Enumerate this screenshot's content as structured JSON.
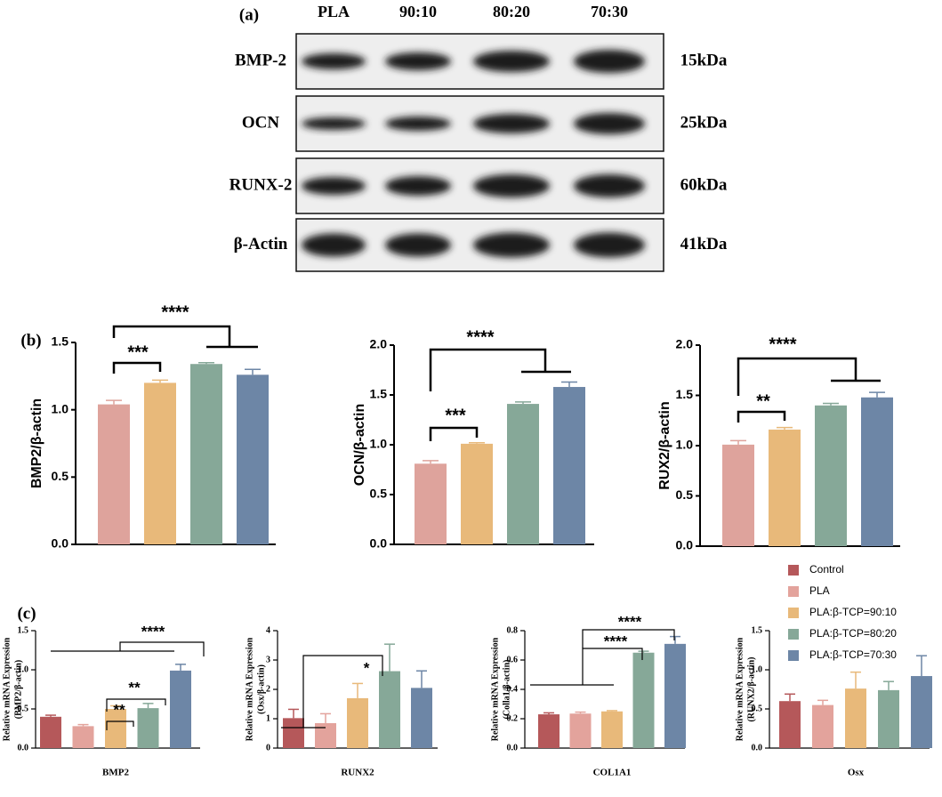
{
  "blot": {
    "panel_label": "(a)",
    "lanes": [
      "PLA",
      "90:10",
      "80:20",
      "70:30"
    ],
    "proteins": [
      "BMP-2",
      "OCN",
      "RUNX-2",
      "β-Actin"
    ],
    "sizes": [
      "15kDa",
      "25kDa",
      "60kDa",
      "41kDa"
    ]
  },
  "panel_labels": [
    "(b)",
    "(c)"
  ],
  "legend": {
    "position": "right",
    "entries": [
      {
        "name": "Control",
        "color": "#b5585a"
      },
      {
        "name": "PLA",
        "color": "#e3a39c"
      },
      {
        "name": "PLA:β-TCP=90:10",
        "color": "#e8b97a"
      },
      {
        "name": "PLA:β-TCP=80:20",
        "color": "#86a898"
      },
      {
        "name": "PLA:β-TCP=70:30",
        "color": "#6d86a6"
      }
    ]
  },
  "chart_data": [
    {
      "type": "bar",
      "ylabel": "BMP2/β-actin",
      "ylim": [
        0,
        1.5
      ],
      "yticks": [
        {
          "value": 0,
          "label": "0.0"
        },
        0.5,
        {
          "value": 1,
          "label": "1.0"
        },
        1.5
      ],
      "values": [
        1.04,
        1.2,
        1.34,
        1.26
      ],
      "errors": [
        0.03,
        0.02,
        0.01,
        0.04
      ],
      "colors": [
        "#dea39c",
        "#e8b97a",
        "#86a898",
        "#6d86a6"
      ],
      "annotations": [
        "****",
        "***"
      ]
    },
    {
      "type": "bar",
      "ylabel": "OCN/β-actin",
      "ylim": [
        0,
        2
      ],
      "yticks": [
        {
          "value": 0,
          "label": "0.0"
        },
        0.5,
        {
          "value": 1,
          "label": "1.0"
        },
        1.5,
        {
          "value": 2,
          "label": "2.0"
        }
      ],
      "values": [
        0.81,
        1.01,
        1.41,
        1.58
      ],
      "errors": [
        0.03,
        0.01,
        0.02,
        0.05
      ],
      "colors": [
        "#dea39c",
        "#e8b97a",
        "#86a898",
        "#6d86a6"
      ],
      "annotations": [
        "****",
        "***"
      ]
    },
    {
      "type": "bar",
      "ylabel": "RUX2/β-actin",
      "ylim": [
        0,
        2
      ],
      "yticks": [
        {
          "value": 0,
          "label": "0.0"
        },
        0.5,
        {
          "value": 1,
          "label": "1.0"
        },
        1.5,
        {
          "value": 2,
          "label": "2.0"
        }
      ],
      "values": [
        1.01,
        1.16,
        1.4,
        1.48
      ],
      "errors": [
        0.04,
        0.02,
        0.02,
        0.05
      ],
      "colors": [
        "#dea39c",
        "#e8b97a",
        "#86a898",
        "#6d86a6"
      ],
      "annotations": [
        "****",
        "**"
      ]
    },
    {
      "type": "bar",
      "xlabel": "BMP2",
      "ylabel": [
        "Relative mRNA Expression",
        "(BMP2/β-actin)"
      ],
      "ylim": [
        0,
        1.5
      ],
      "yticks": [
        {
          "value": 0,
          "label": "0.0"
        },
        0.5,
        {
          "value": 1,
          "label": "1.0"
        },
        1.5
      ],
      "values": [
        0.4,
        0.28,
        0.5,
        0.51,
        0.99
      ],
      "errors": [
        0.02,
        0.02,
        0.04,
        0.06,
        0.08
      ],
      "colors": [
        "#b5585a",
        "#e3a39c",
        "#e8b97a",
        "#86a898",
        "#6d86a6"
      ],
      "annotations": [
        "****",
        "**",
        "**"
      ]
    },
    {
      "type": "bar",
      "xlabel": "RUNX2",
      "ylabel": [
        "Relative mRNA Expression",
        "(Osx/β-actin)"
      ],
      "ylim": [
        0,
        4
      ],
      "yticks": [
        0,
        1,
        2,
        3,
        4
      ],
      "values": [
        1.02,
        0.85,
        1.7,
        2.62,
        2.05
      ],
      "errors": [
        0.3,
        0.32,
        0.5,
        0.92,
        0.58
      ],
      "colors": [
        "#b5585a",
        "#e3a39c",
        "#e8b97a",
        "#86a898",
        "#6d86a6"
      ],
      "annotations": [
        "*"
      ]
    },
    {
      "type": "bar",
      "xlabel": "COL1A1",
      "ylabel": [
        "Relative mRNA Expression",
        "(Colla1/β-actin)"
      ],
      "ylim": [
        0,
        0.8
      ],
      "yticks": [
        {
          "value": 0,
          "label": "0.0"
        },
        0.2,
        0.4,
        0.6,
        0.8
      ],
      "values": [
        0.23,
        0.235,
        0.25,
        0.65,
        0.71
      ],
      "errors": [
        0.01,
        0.01,
        0.005,
        0.01,
        0.05
      ],
      "colors": [
        "#b5585a",
        "#e3a39c",
        "#e8b97a",
        "#86a898",
        "#6d86a6"
      ],
      "annotations": [
        "****",
        "****"
      ]
    },
    {
      "type": "bar",
      "xlabel": "Osx",
      "ylabel": [
        "Relative mRNA Expression",
        "(RUNX2/β-actin)"
      ],
      "ylim": [
        0,
        1.5
      ],
      "yticks": [
        {
          "value": 0,
          "label": "0.0"
        },
        0.5,
        {
          "value": 1,
          "label": "1.0"
        },
        1.5
      ],
      "values": [
        0.6,
        0.55,
        0.76,
        0.74,
        0.92
      ],
      "errors": [
        0.09,
        0.06,
        0.21,
        0.11,
        0.26
      ],
      "colors": [
        "#b5585a",
        "#e3a39c",
        "#e8b97a",
        "#86a898",
        "#6d86a6"
      ]
    }
  ]
}
